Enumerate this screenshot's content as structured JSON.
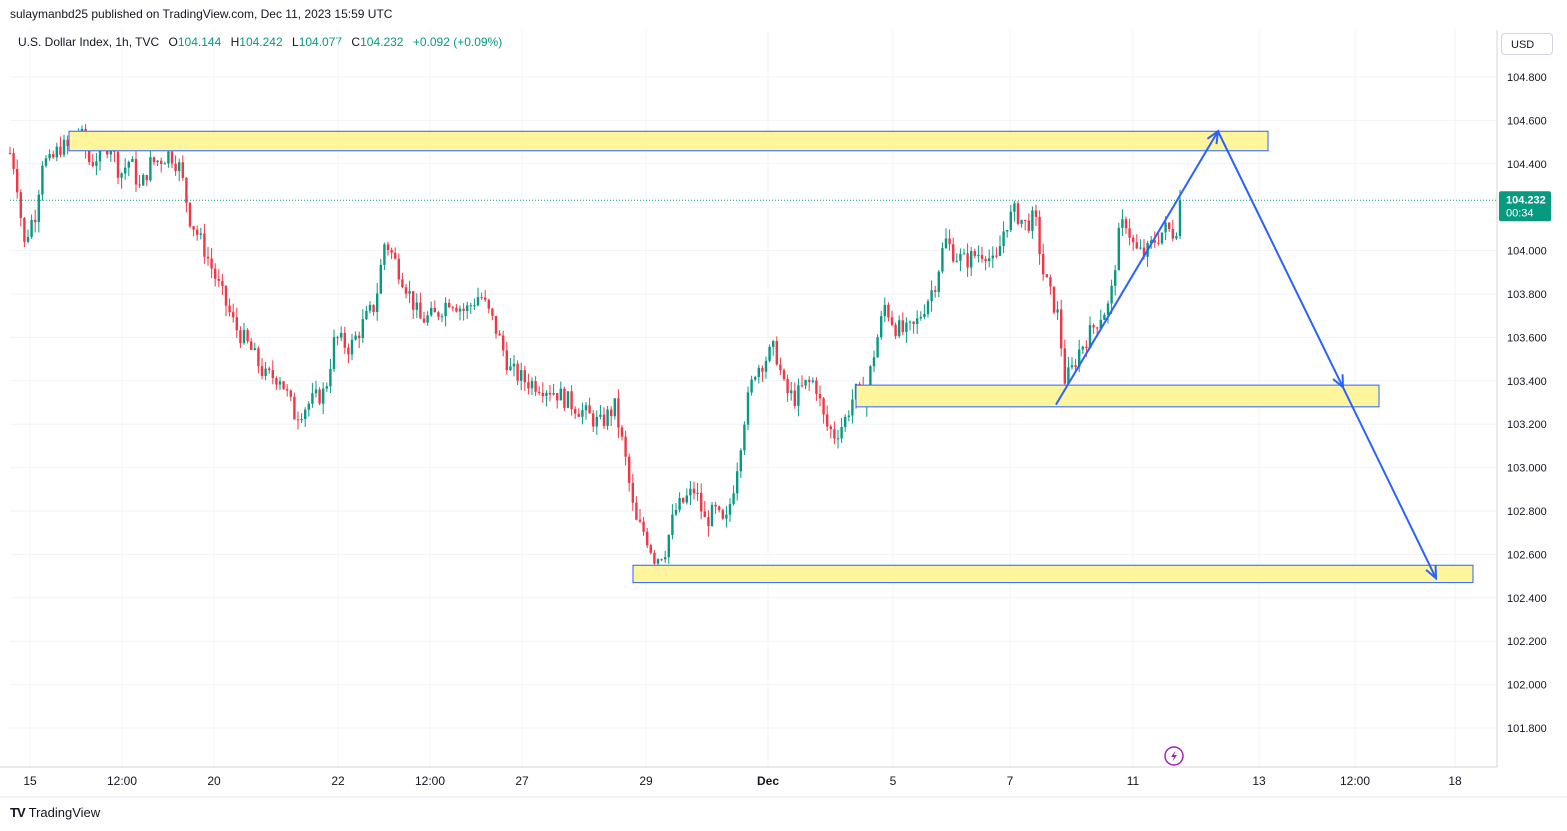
{
  "header": {
    "published": "sulaymanbd25 published on TradingView.com, Dec 11, 2023 15:59 UTC"
  },
  "legend": {
    "symbol": "U.S. Dollar Index, 1h, TVC",
    "open_label": "O",
    "open": "104.144",
    "high_label": "H",
    "high": "104.242",
    "low_label": "L",
    "low": "104.077",
    "close_label": "C",
    "close": "104.232",
    "change": "+0.092 (+0.09%)"
  },
  "currency": "USD",
  "price_tag": {
    "price": "104.232",
    "countdown": "00:34",
    "color": "#089981"
  },
  "footer": {
    "logo_text": "TradingView",
    "logo_mark": "TV"
  },
  "colors": {
    "up": "#089981",
    "down": "#f23645",
    "zone_fill": "#fff59d",
    "zone_border": "#2962ff",
    "arrow": "#2962ff",
    "bolt": "#9c27b0"
  },
  "chart_data": {
    "type": "candlestick",
    "title": "U.S. Dollar Index, 1h, TVC",
    "ylim": [
      101.7,
      104.9
    ],
    "yticks": [
      "104.800",
      "104.600",
      "104.400",
      "104.200",
      "104.000",
      "103.800",
      "103.600",
      "103.400",
      "103.200",
      "103.000",
      "102.800",
      "102.600",
      "102.400",
      "102.200",
      "102.000",
      "101.800"
    ],
    "xticks": [
      "15",
      "12:00",
      "20",
      "22",
      "12:00",
      "27",
      "29",
      "Dec",
      "5",
      "7",
      "11",
      "13",
      "12:00",
      "18"
    ],
    "grid": true,
    "last_price": 104.232,
    "path_points": [
      [
        0,
        104.45
      ],
      [
        5,
        104.38
      ],
      [
        8,
        104.28
      ],
      [
        14,
        104.02
      ],
      [
        20,
        104.12
      ],
      [
        26,
        104.18
      ],
      [
        32,
        104.42
      ],
      [
        40,
        104.4
      ],
      [
        50,
        104.48
      ],
      [
        60,
        104.47
      ],
      [
        70,
        104.55
      ],
      [
        80,
        104.4
      ],
      [
        90,
        104.45
      ],
      [
        100,
        104.5
      ],
      [
        110,
        104.35
      ],
      [
        120,
        104.42
      ],
      [
        130,
        104.28
      ],
      [
        140,
        104.4
      ],
      [
        150,
        104.42
      ],
      [
        160,
        104.45
      ],
      [
        170,
        104.38
      ],
      [
        180,
        104.15
      ],
      [
        195,
        104.0
      ],
      [
        210,
        103.82
      ],
      [
        225,
        103.65
      ],
      [
        240,
        103.55
      ],
      [
        255,
        103.42
      ],
      [
        270,
        103.42
      ],
      [
        285,
        103.24
      ],
      [
        300,
        103.3
      ],
      [
        315,
        103.35
      ],
      [
        325,
        103.6
      ],
      [
        340,
        103.55
      ],
      [
        355,
        103.68
      ],
      [
        365,
        103.75
      ],
      [
        375,
        104.05
      ],
      [
        385,
        103.95
      ],
      [
        395,
        103.85
      ],
      [
        410,
        103.68
      ],
      [
        425,
        103.7
      ],
      [
        440,
        103.78
      ],
      [
        455,
        103.72
      ],
      [
        470,
        103.8
      ],
      [
        485,
        103.65
      ],
      [
        500,
        103.45
      ],
      [
        515,
        103.4
      ],
      [
        530,
        103.38
      ],
      [
        545,
        103.35
      ],
      [
        560,
        103.3
      ],
      [
        575,
        103.25
      ],
      [
        590,
        103.2
      ],
      [
        605,
        103.28
      ],
      [
        615,
        103.05
      ],
      [
        625,
        102.75
      ],
      [
        635,
        102.7
      ],
      [
        645,
        102.58
      ],
      [
        655,
        102.62
      ],
      [
        665,
        102.8
      ],
      [
        675,
        102.85
      ],
      [
        685,
        102.9
      ],
      [
        695,
        102.75
      ],
      [
        705,
        102.8
      ],
      [
        715,
        102.72
      ],
      [
        725,
        102.95
      ],
      [
        735,
        103.25
      ],
      [
        745,
        103.45
      ],
      [
        755,
        103.5
      ],
      [
        765,
        103.55
      ],
      [
        775,
        103.35
      ],
      [
        785,
        103.32
      ],
      [
        795,
        103.38
      ],
      [
        805,
        103.4
      ],
      [
        815,
        103.2
      ],
      [
        825,
        103.15
      ],
      [
        835,
        103.22
      ],
      [
        845,
        103.35
      ],
      [
        855,
        103.32
      ],
      [
        865,
        103.55
      ],
      [
        875,
        103.75
      ],
      [
        885,
        103.65
      ],
      [
        895,
        103.62
      ],
      [
        905,
        103.65
      ],
      [
        915,
        103.75
      ],
      [
        925,
        103.85
      ],
      [
        935,
        104.05
      ],
      [
        945,
        103.98
      ],
      [
        955,
        103.95
      ],
      [
        965,
        103.98
      ],
      [
        975,
        104.0
      ],
      [
        985,
        103.92
      ],
      [
        995,
        104.12
      ],
      [
        1005,
        104.18
      ],
      [
        1015,
        104.12
      ],
      [
        1025,
        104.15
      ],
      [
        1033,
        103.9
      ],
      [
        1040,
        103.8
      ],
      [
        1048,
        103.7
      ],
      [
        1055,
        103.4
      ],
      [
        1062,
        103.45
      ],
      [
        1070,
        103.55
      ],
      [
        1080,
        103.62
      ],
      [
        1090,
        103.7
      ],
      [
        1100,
        103.75
      ],
      [
        1108,
        104.05
      ],
      [
        1115,
        104.15
      ],
      [
        1125,
        104.0
      ],
      [
        1135,
        103.98
      ],
      [
        1145,
        104.05
      ],
      [
        1155,
        104.1
      ],
      [
        1165,
        104.08
      ],
      [
        1172,
        104.232
      ]
    ],
    "zones": [
      {
        "x1": 69,
        "x2": 1268,
        "top": 104.55,
        "bottom": 104.46
      },
      {
        "x1": 856,
        "x2": 1379,
        "top": 103.38,
        "bottom": 103.28
      },
      {
        "x1": 633,
        "x2": 1473,
        "top": 102.55,
        "bottom": 102.47
      }
    ],
    "projection_path": [
      [
        1056,
        103.29
      ],
      [
        1218,
        104.55
      ],
      [
        1343,
        103.37
      ],
      [
        1436,
        102.49
      ]
    ]
  }
}
